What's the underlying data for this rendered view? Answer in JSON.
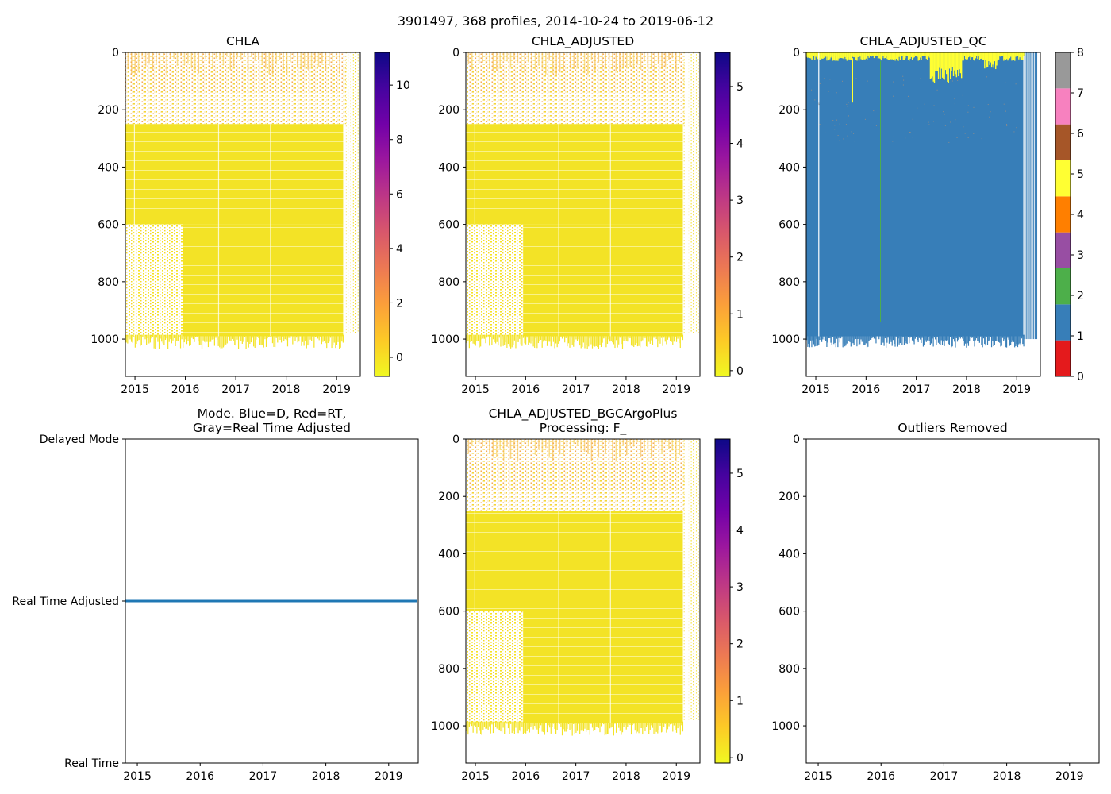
{
  "figure": {
    "suptitle": "3901497, 368 profiles, 2014-10-24 to 2019-06-12"
  },
  "colors": {
    "plasma": [
      "#f0f921",
      "#fdca26",
      "#fb9f3a",
      "#ed7953",
      "#d8576b",
      "#bd3786",
      "#9c179e",
      "#7201a8",
      "#46039f",
      "#0d0887"
    ],
    "qc_classes": [
      "#e41a1c",
      "#377eb8",
      "#4daf4a",
      "#984ea3",
      "#ff7f00",
      "#ffff33",
      "#a65628",
      "#f781bf",
      "#999999"
    ],
    "mode_line": "#1f77b4"
  },
  "chart_data": [
    {
      "id": "chla",
      "type": "heatmap",
      "title": "CHLA",
      "xlim": [
        2014.81,
        2019.47
      ],
      "ylim": [
        1130,
        0
      ],
      "xticks": [
        "2015",
        "2016",
        "2017",
        "2018",
        "2019"
      ],
      "yticks": [
        "0",
        "200",
        "400",
        "600",
        "800",
        "1000"
      ],
      "colorbar": {
        "range": [
          -0.7,
          11.2
        ],
        "ticks": [
          "0",
          "2",
          "4",
          "6",
          "8",
          "10"
        ]
      },
      "regions": [
        {
          "x": [
            2014.81,
            2019.2
          ],
          "depth": [
            0,
            250
          ],
          "level": 0.15,
          "note": "sparse near-surface profiles, values 0-1"
        },
        {
          "x": [
            2014.81,
            2019.13
          ],
          "depth": [
            250,
            600
          ],
          "level": 0.02
        },
        {
          "x": [
            2014.81,
            2015.95
          ],
          "depth": [
            600,
            990
          ],
          "level": 0.05,
          "note": "sparse"
        },
        {
          "x": [
            2015.95,
            2019.13
          ],
          "depth": [
            600,
            990
          ],
          "level": 0.02
        }
      ]
    },
    {
      "id": "chla_adj",
      "type": "heatmap",
      "title": "CHLA_ADJUSTED",
      "xlim": [
        2014.81,
        2019.47
      ],
      "ylim": [
        1130,
        0
      ],
      "xticks": [
        "2015",
        "2016",
        "2017",
        "2018",
        "2019"
      ],
      "yticks": [
        "0",
        "200",
        "400",
        "600",
        "800",
        "1000"
      ],
      "colorbar": {
        "range": [
          -0.1,
          5.6
        ],
        "ticks": [
          "0",
          "1",
          "2",
          "3",
          "4",
          "5"
        ]
      },
      "regions": [
        {
          "x": [
            2014.81,
            2019.2
          ],
          "depth": [
            0,
            250
          ],
          "level": 0.2,
          "note": "sparse"
        },
        {
          "x": [
            2014.81,
            2019.13
          ],
          "depth": [
            250,
            600
          ],
          "level": 0.02
        },
        {
          "x": [
            2014.81,
            2015.95
          ],
          "depth": [
            600,
            990
          ],
          "level": 0.05,
          "note": "sparse"
        },
        {
          "x": [
            2015.95,
            2019.13
          ],
          "depth": [
            600,
            990
          ],
          "level": 0.02
        }
      ]
    },
    {
      "id": "chla_qc",
      "type": "heatmap",
      "title": "CHLA_ADJUSTED_QC",
      "xlim": [
        2014.81,
        2019.47
      ],
      "ylim": [
        1130,
        0
      ],
      "xticks": [
        "2015",
        "2016",
        "2017",
        "2018",
        "2019"
      ],
      "yticks": [
        "0",
        "200",
        "400",
        "600",
        "800",
        "1000"
      ],
      "colorbar": {
        "range": [
          0,
          8
        ],
        "ticks": [
          "0",
          "1",
          "2",
          "3",
          "4",
          "5",
          "6",
          "7",
          "8"
        ]
      },
      "regions": [
        {
          "x": [
            2014.81,
            2019.38
          ],
          "depth": [
            0,
            990
          ],
          "qc": 1
        },
        {
          "x": [
            2014.81,
            2019.38
          ],
          "depth": [
            0,
            30
          ],
          "qc": 5,
          "note": "surface band, deeper around 2017.3-2017.9"
        }
      ]
    },
    {
      "id": "mode",
      "type": "line",
      "title": "Mode. Blue=D, Red=RT,\nGray=Real Time Adjusted",
      "xlim": [
        2014.81,
        2019.47
      ],
      "xticks": [
        "2015",
        "2016",
        "2017",
        "2018",
        "2019"
      ],
      "yticks": [
        "Delayed Mode",
        "Real Time Adjusted",
        "Real Time"
      ],
      "ylim": [
        0,
        2
      ],
      "series": [
        {
          "name": "mode",
          "x": [
            2014.81,
            2019.45
          ],
          "y": [
            1,
            1
          ]
        }
      ]
    },
    {
      "id": "chla_bgc",
      "type": "heatmap",
      "title": "CHLA_ADJUSTED_BGCArgoPlus\nProcessing: F_",
      "xlim": [
        2014.81,
        2019.47
      ],
      "ylim": [
        1130,
        0
      ],
      "xticks": [
        "2015",
        "2016",
        "2017",
        "2018",
        "2019"
      ],
      "yticks": [
        "0",
        "200",
        "400",
        "600",
        "800",
        "1000"
      ],
      "colorbar": {
        "range": [
          -0.1,
          5.6
        ],
        "ticks": [
          "0",
          "1",
          "2",
          "3",
          "4",
          "5"
        ]
      },
      "regions": [
        {
          "x": [
            2014.81,
            2019.2
          ],
          "depth": [
            0,
            250
          ],
          "level": 0.2,
          "note": "sparse"
        },
        {
          "x": [
            2014.81,
            2019.13
          ],
          "depth": [
            250,
            600
          ],
          "level": 0.02
        },
        {
          "x": [
            2014.81,
            2015.95
          ],
          "depth": [
            600,
            990
          ],
          "level": 0.05,
          "note": "sparse"
        },
        {
          "x": [
            2015.95,
            2019.13
          ],
          "depth": [
            600,
            990
          ],
          "level": 0.02
        }
      ]
    },
    {
      "id": "outliers",
      "type": "scatter",
      "title": "Outliers Removed",
      "xlim": [
        2014.81,
        2019.47
      ],
      "ylim": [
        1130,
        0
      ],
      "xticks": [
        "2015",
        "2016",
        "2017",
        "2018",
        "2019"
      ],
      "yticks": [
        "0",
        "200",
        "400",
        "600",
        "800",
        "1000"
      ],
      "points": []
    }
  ]
}
